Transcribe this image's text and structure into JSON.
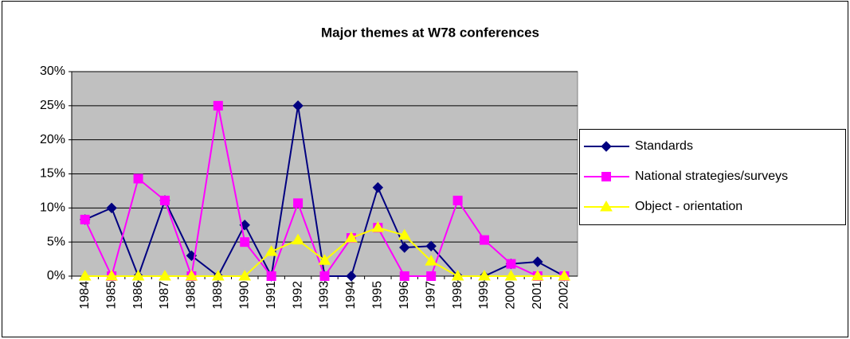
{
  "chart_data": {
    "type": "line",
    "title": "Major themes at W78 conferences",
    "categories": [
      "1984",
      "1985",
      "1986",
      "1987",
      "1988",
      "1989",
      "1990",
      "1991",
      "1992",
      "1993",
      "1994",
      "1995",
      "1996",
      "1997",
      "1998",
      "1999",
      "2000",
      "2001",
      "2002"
    ],
    "series": [
      {
        "name": "Standards",
        "color": "#000080",
        "marker": "diamond",
        "values": [
          8.3,
          10,
          0,
          11.1,
          3,
          0,
          7.5,
          0,
          25,
          0,
          0,
          13,
          4.2,
          4.4,
          0,
          0,
          1.8,
          2.1,
          0
        ]
      },
      {
        "name": "National strategies/surveys",
        "color": "#ff00ff",
        "marker": "square",
        "values": [
          8.3,
          0,
          14.3,
          11.1,
          0,
          25,
          5,
          0,
          10.7,
          0,
          5.6,
          7.1,
          0,
          0,
          11.1,
          5.3,
          1.8,
          0,
          0
        ]
      },
      {
        "name": "Object - orientation",
        "color": "#ffff00",
        "marker": "triangle",
        "values": [
          0,
          0,
          0,
          0,
          0,
          0,
          0,
          3.6,
          5.3,
          2.3,
          5.6,
          7.1,
          6,
          2.2,
          0,
          0,
          0,
          0,
          0
        ]
      }
    ],
    "ylim": [
      0,
      30
    ],
    "yticks": [
      {
        "value": 0,
        "label": "0%"
      },
      {
        "value": 5,
        "label": "5%"
      },
      {
        "value": 10,
        "label": "10%"
      },
      {
        "value": 15,
        "label": "15%"
      },
      {
        "value": 20,
        "label": "20%"
      },
      {
        "value": 25,
        "label": "25%"
      },
      {
        "value": 30,
        "label": "30%"
      }
    ],
    "grid": true,
    "legend": "right",
    "plot_background": "#c0c0c0"
  }
}
